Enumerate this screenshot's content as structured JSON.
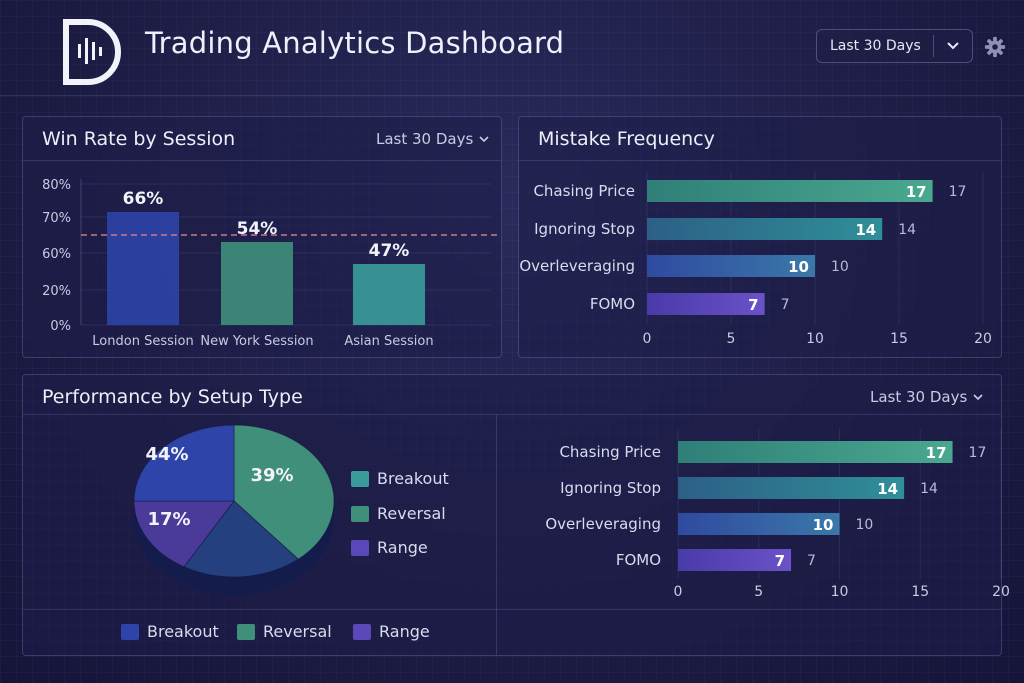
{
  "header": {
    "title": "Trading Analytics Dashboard",
    "range_label": "Last 30 Days"
  },
  "colors": {
    "blue": "#2e44a8",
    "green": "#3f8f7a",
    "teal": "#3a9c9a",
    "purple": "#5a47b8",
    "target_line": "#c97a8a"
  },
  "panels": {
    "win_rate": {
      "title": "Win Rate by Session",
      "range_label": "Last 30 Days"
    },
    "mistakes": {
      "title": "Mistake Frequency"
    },
    "setup": {
      "title": "Performance by Setup Type",
      "range_label": "Last 30 Days"
    }
  },
  "chart_data": [
    {
      "id": "win_rate",
      "type": "bar",
      "title": "Win Rate by Session",
      "categories": [
        "London Session",
        "New York Session",
        "Asian Session"
      ],
      "values": [
        66,
        54,
        47
      ],
      "value_labels": [
        "66%",
        "54%",
        "47%"
      ],
      "y_ticks": [
        "0%",
        "20%",
        "60%",
        "70%",
        "80%"
      ],
      "target_line": true
    },
    {
      "id": "mistakes",
      "type": "bar",
      "orientation": "horizontal",
      "title": "Mistake Frequency",
      "categories": [
        "Chasing Price",
        "Ignoring Stop",
        "Overleveraging",
        "FOMO"
      ],
      "values": [
        17,
        14,
        10,
        7
      ],
      "xlim": [
        0,
        20
      ],
      "x_ticks": [
        0,
        5,
        10,
        15,
        20
      ]
    },
    {
      "id": "setup_pie",
      "type": "pie",
      "title": "Performance by Setup Type",
      "slice_labels": [
        "44%",
        "39%",
        "17%"
      ],
      "legend": [
        "Breakout",
        "Reversal",
        "Range"
      ],
      "legend_bottom": [
        "Breakout",
        "Reversal",
        "Range"
      ]
    },
    {
      "id": "setup_bars",
      "type": "bar",
      "orientation": "horizontal",
      "categories": [
        "Chasing Price",
        "Ignoring Stop",
        "Overleveraging",
        "FOMO"
      ],
      "values": [
        17,
        14,
        10,
        7
      ],
      "xlim": [
        0,
        20
      ],
      "x_ticks": [
        0,
        5,
        10,
        15,
        20
      ]
    }
  ]
}
